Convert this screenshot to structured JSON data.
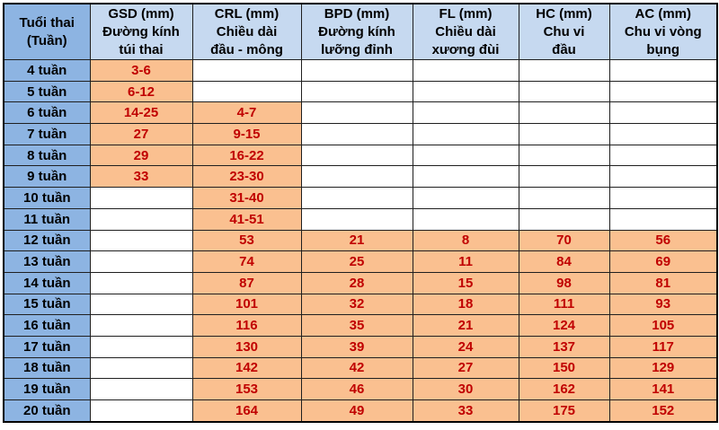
{
  "palette": {
    "header_bg": "#c6d9f0",
    "week_col_bg": "#8db4e2",
    "filled_cell_bg": "#fac090",
    "empty_cell_bg": "#ffffff",
    "value_text": "#c00000",
    "label_text": "#000000",
    "border": "#1f1f1f"
  },
  "table": {
    "columns": [
      {
        "key": "week",
        "lines": [
          "Tuổi thai",
          "(Tuần)"
        ]
      },
      {
        "key": "gsd",
        "lines": [
          "GSD (mm)",
          "Đường kính",
          "túi thai"
        ]
      },
      {
        "key": "crl",
        "lines": [
          "CRL (mm)",
          "Chiều dài",
          "đầu - mông"
        ]
      },
      {
        "key": "bpd",
        "lines": [
          "BPD (mm)",
          "Đường kính",
          "lưỡng đỉnh"
        ]
      },
      {
        "key": "fl",
        "lines": [
          "FL (mm)",
          "Chiều dài",
          "xương đùi"
        ]
      },
      {
        "key": "hc",
        "lines": [
          "HC (mm)",
          "Chu vi",
          "đầu"
        ]
      },
      {
        "key": "ac",
        "lines": [
          "AC (mm)",
          "Chu vi vòng",
          "bụng"
        ]
      }
    ],
    "rows": [
      {
        "week": "4 tuần",
        "gsd": "3-6",
        "crl": "",
        "bpd": "",
        "fl": "",
        "hc": "",
        "ac": ""
      },
      {
        "week": "5 tuần",
        "gsd": "6-12",
        "crl": "",
        "bpd": "",
        "fl": "",
        "hc": "",
        "ac": ""
      },
      {
        "week": "6 tuần",
        "gsd": "14-25",
        "crl": "4-7",
        "bpd": "",
        "fl": "",
        "hc": "",
        "ac": ""
      },
      {
        "week": "7 tuần",
        "gsd": "27",
        "crl": "9-15",
        "bpd": "",
        "fl": "",
        "hc": "",
        "ac": ""
      },
      {
        "week": "8 tuần",
        "gsd": "29",
        "crl": "16-22",
        "bpd": "",
        "fl": "",
        "hc": "",
        "ac": ""
      },
      {
        "week": "9 tuần",
        "gsd": "33",
        "crl": "23-30",
        "bpd": "",
        "fl": "",
        "hc": "",
        "ac": ""
      },
      {
        "week": "10 tuần",
        "gsd": "",
        "crl": "31-40",
        "bpd": "",
        "fl": "",
        "hc": "",
        "ac": ""
      },
      {
        "week": "11 tuần",
        "gsd": "",
        "crl": "41-51",
        "bpd": "",
        "fl": "",
        "hc": "",
        "ac": ""
      },
      {
        "week": "12 tuần",
        "gsd": "",
        "crl": "53",
        "bpd": "21",
        "fl": "8",
        "hc": "70",
        "ac": "56"
      },
      {
        "week": "13 tuần",
        "gsd": "",
        "crl": "74",
        "bpd": "25",
        "fl": "11",
        "hc": "84",
        "ac": "69"
      },
      {
        "week": "14 tuần",
        "gsd": "",
        "crl": "87",
        "bpd": "28",
        "fl": "15",
        "hc": "98",
        "ac": "81"
      },
      {
        "week": "15 tuần",
        "gsd": "",
        "crl": "101",
        "bpd": "32",
        "fl": "18",
        "hc": "111",
        "ac": "93"
      },
      {
        "week": "16 tuần",
        "gsd": "",
        "crl": "116",
        "bpd": "35",
        "fl": "21",
        "hc": "124",
        "ac": "105"
      },
      {
        "week": "17 tuần",
        "gsd": "",
        "crl": "130",
        "bpd": "39",
        "fl": "24",
        "hc": "137",
        "ac": "117"
      },
      {
        "week": "18 tuần",
        "gsd": "",
        "crl": "142",
        "bpd": "42",
        "fl": "27",
        "hc": "150",
        "ac": "129"
      },
      {
        "week": "19 tuần",
        "gsd": "",
        "crl": "153",
        "bpd": "46",
        "fl": "30",
        "hc": "162",
        "ac": "141"
      },
      {
        "week": "20 tuần",
        "gsd": "",
        "crl": "164",
        "bpd": "49",
        "fl": "33",
        "hc": "175",
        "ac": "152"
      }
    ]
  },
  "chart_data": {
    "type": "table",
    "categories": [
      "4 tuần",
      "5 tuần",
      "6 tuần",
      "7 tuần",
      "8 tuần",
      "9 tuần",
      "10 tuần",
      "11 tuần",
      "12 tuần",
      "13 tuần",
      "14 tuần",
      "15 tuần",
      "16 tuần",
      "17 tuần",
      "18 tuần",
      "19 tuần",
      "20 tuần"
    ],
    "category_label": "Tuổi thai (Tuần)",
    "series": [
      {
        "name": "GSD (mm) Đường kính túi thai",
        "values": [
          "3-6",
          "6-12",
          "14-25",
          "27",
          "29",
          "33",
          null,
          null,
          null,
          null,
          null,
          null,
          null,
          null,
          null,
          null,
          null
        ]
      },
      {
        "name": "CRL (mm) Chiều dài đầu - mông",
        "values": [
          null,
          null,
          "4-7",
          "9-15",
          "16-22",
          "23-30",
          "31-40",
          "41-51",
          53,
          74,
          87,
          101,
          116,
          130,
          142,
          153,
          164
        ]
      },
      {
        "name": "BPD (mm) Đường kính lưỡng đỉnh",
        "values": [
          null,
          null,
          null,
          null,
          null,
          null,
          null,
          null,
          21,
          25,
          28,
          32,
          35,
          39,
          42,
          46,
          49
        ]
      },
      {
        "name": "FL (mm) Chiều dài xương đùi",
        "values": [
          null,
          null,
          null,
          null,
          null,
          null,
          null,
          null,
          8,
          11,
          15,
          18,
          21,
          24,
          27,
          30,
          33
        ]
      },
      {
        "name": "HC (mm) Chu vi đầu",
        "values": [
          null,
          null,
          null,
          null,
          null,
          null,
          null,
          null,
          70,
          84,
          98,
          111,
          124,
          137,
          150,
          162,
          175
        ]
      },
      {
        "name": "AC (mm) Chu vi vòng bụng",
        "values": [
          null,
          null,
          null,
          null,
          null,
          null,
          null,
          null,
          56,
          69,
          81,
          93,
          105,
          117,
          129,
          141,
          152
        ]
      }
    ],
    "layout": {
      "grid": true,
      "header_rows": 1,
      "header_cols": 1
    }
  }
}
